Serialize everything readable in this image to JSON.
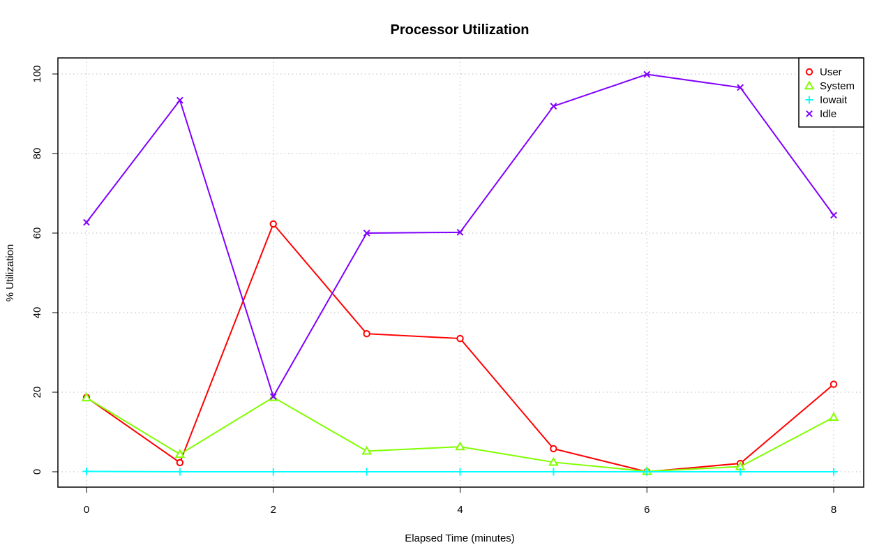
{
  "chart_data": {
    "type": "line",
    "title": "Processor Utilization",
    "xlabel": "Elapsed Time (minutes)",
    "ylabel": "% Utilization",
    "x": [
      0,
      1,
      2,
      3,
      4,
      5,
      6,
      7,
      8
    ],
    "xlim": [
      0,
      8
    ],
    "ylim": [
      0,
      100
    ],
    "xticks": [
      0,
      2,
      4,
      6,
      8
    ],
    "yticks": [
      0,
      20,
      40,
      60,
      80,
      100
    ],
    "xtick_labels": [
      "0",
      "2",
      "4",
      "6",
      "8"
    ],
    "ytick_labels": [
      "0",
      "20",
      "40",
      "60",
      "80",
      "100"
    ],
    "grid": true,
    "legend_position": "top-right",
    "series": [
      {
        "name": "User",
        "color": "#ff0000",
        "marker": "circle",
        "values": [
          18.7,
          2.3,
          62.3,
          34.7,
          33.5,
          5.8,
          0.0,
          2.1,
          22.0
        ]
      },
      {
        "name": "System",
        "color": "#80ff00",
        "marker": "triangle",
        "values": [
          18.6,
          4.4,
          18.7,
          5.2,
          6.3,
          2.4,
          0.1,
          1.3,
          13.7
        ]
      },
      {
        "name": "Iowait",
        "color": "#00ffff",
        "marker": "plus",
        "values": [
          0.1,
          0.0,
          0.0,
          0.0,
          0.0,
          0.0,
          0.0,
          0.0,
          0.0
        ]
      },
      {
        "name": "Idle",
        "color": "#8000ff",
        "marker": "cross",
        "values": [
          62.7,
          93.4,
          18.9,
          60.0,
          60.2,
          91.9,
          99.9,
          96.6,
          64.5
        ]
      }
    ]
  }
}
